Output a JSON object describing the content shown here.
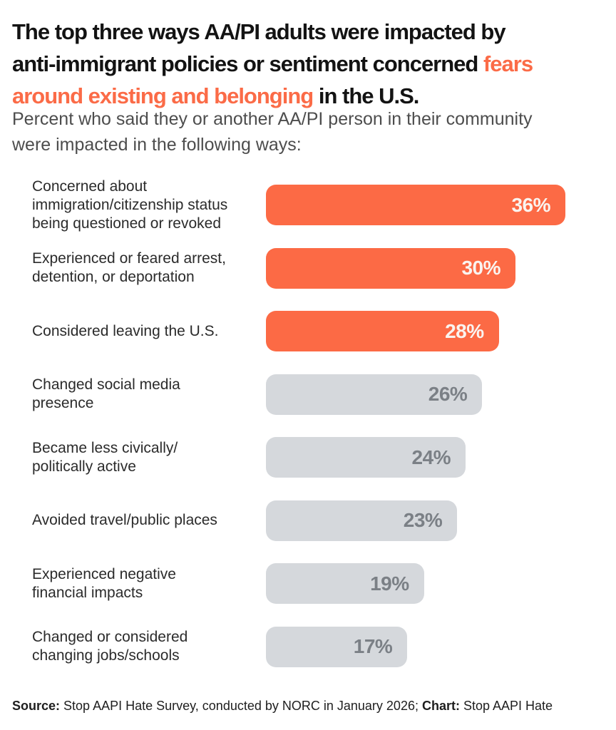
{
  "accent_color": "#FB6B47",
  "header": {
    "title_lines": [
      [
        {
          "t": "The top three ways AA/PI adults were impacted by",
          "c": "dark"
        }
      ],
      [
        {
          "t": "anti-immigrant policies or sentiment concerned ",
          "c": "dark"
        },
        {
          "t": "fears",
          "c": "accent"
        }
      ],
      [
        {
          "t": "around existing and belonging",
          "c": "accent"
        },
        {
          "t": " in the U.S.",
          "c": "dark"
        }
      ]
    ],
    "subtitle_lines": [
      "Percent who said they or another AA/PI person in their community",
      "were impacted in the following ways:"
    ]
  },
  "chart_data": {
    "type": "bar",
    "orientation": "horizontal",
    "title": "The top three ways AA/PI adults were impacted by anti-immigrant policies or sentiment concerned fears around existing and belonging in the U.S.",
    "subtitle": "Percent who said they or another AA/PI person in their community were impacted in the following ways:",
    "categories": [
      "Concerned about\nimmigration/citizenship status\nbeing questioned or revoked",
      "Experienced or feared arrest,\ndetention, or deportation",
      "Considered leaving the U.S.",
      "Changed social media\npresence",
      "Became less civically/\npolitically active",
      "Avoided travel/public places",
      "Experienced negative\nfinancial impacts",
      "Changed or considered\nchanging jobs/schools"
    ],
    "values": [
      36,
      30,
      28,
      26,
      24,
      23,
      19,
      17
    ],
    "value_suffix": "%",
    "highlighted_count": 3,
    "xlim": [
      0,
      42
    ],
    "grid": false,
    "legend": false,
    "colors": {
      "highlight_bar": "#FC6A45",
      "default_bar": "#D5D8DC",
      "highlight_value_text": "#FAF4F0",
      "default_value_text": "#7B8086"
    }
  },
  "footer": {
    "source_label": "Source:",
    "source_text": " Stop AAPI Hate Survey, conducted by NORC in January 2026; ",
    "chart_credit_label": "Chart:",
    "chart_credit_text": " Stop AAPI Hate"
  }
}
